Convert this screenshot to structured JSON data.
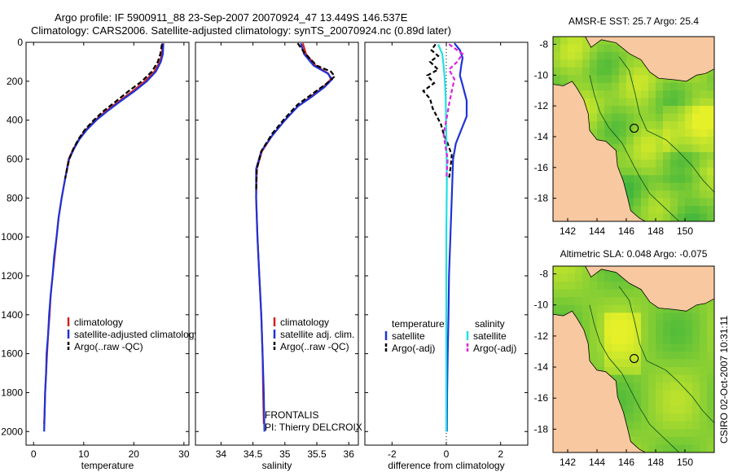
{
  "title": {
    "line1": "Argo profile: IF 5900911_88 23-Sep-2007 20070924_47 13.449S 146.537E",
    "line2": "Climatology: CARS2006. Satellite-adjusted climatology: synTS_20070924.nc (0.89d later)"
  },
  "footer": {
    "credit": "CSIRO 02-Oct-2007 10:31:11",
    "project": "FRONTALIS",
    "pi": "PI: Thierry DELCROIX"
  },
  "colors": {
    "climatology": "#d42020",
    "satellite": "#1f33d8",
    "argo": "#000000",
    "sat_salinity": "#22e0e0",
    "argo_salinity_adj": "#e020e0",
    "land": "#f8c8a0"
  },
  "chart_data": [
    {
      "type": "line",
      "id": "temperature",
      "xlabel": "temperature",
      "ylabel": "",
      "xlim": [
        -1.5,
        31
      ],
      "ylim": [
        2070,
        0
      ],
      "xticks": [
        0,
        10,
        20,
        30
      ],
      "yticks": [
        0,
        200,
        400,
        600,
        800,
        1000,
        1200,
        1400,
        1600,
        1800,
        2000
      ],
      "legend": [
        "climatology",
        "satellite-adjusted climatology",
        "Argo(..raw -QC)"
      ],
      "series": [
        {
          "name": "climatology",
          "color": "#d42020",
          "dash": "",
          "points": [
            [
              25.7,
              5
            ],
            [
              25.6,
              60
            ],
            [
              25.2,
              100
            ],
            [
              24.1,
              150
            ],
            [
              22.2,
              200
            ],
            [
              19.8,
              250
            ],
            [
              17.2,
              300
            ],
            [
              14.6,
              350
            ],
            [
              12.3,
              400
            ],
            [
              10.4,
              450
            ],
            [
              9.0,
              500
            ],
            [
              7.9,
              550
            ],
            [
              7.0,
              600
            ],
            [
              6.3,
              700
            ],
            [
              5.6,
              800
            ],
            [
              5.0,
              900
            ],
            [
              4.6,
              1000
            ],
            [
              4.2,
              1100
            ],
            [
              3.8,
              1200
            ],
            [
              3.4,
              1300
            ],
            [
              3.2,
              1400
            ],
            [
              2.9,
              1500
            ],
            [
              2.7,
              1600
            ],
            [
              2.5,
              1700
            ],
            [
              2.3,
              1800
            ],
            [
              2.2,
              1900
            ],
            [
              2.1,
              1960
            ]
          ]
        },
        {
          "name": "satellite-adjusted climatology",
          "color": "#1f33d8",
          "dash": "",
          "points": [
            [
              25.9,
              5
            ],
            [
              25.8,
              60
            ],
            [
              25.4,
              100
            ],
            [
              24.4,
              150
            ],
            [
              22.6,
              200
            ],
            [
              20.2,
              250
            ],
            [
              17.5,
              300
            ],
            [
              14.9,
              350
            ],
            [
              12.5,
              400
            ],
            [
              10.6,
              450
            ],
            [
              9.1,
              500
            ],
            [
              8.0,
              550
            ],
            [
              7.1,
              600
            ],
            [
              6.3,
              700
            ],
            [
              5.6,
              800
            ],
            [
              5.0,
              900
            ],
            [
              4.6,
              1000
            ],
            [
              4.1,
              1100
            ],
            [
              3.8,
              1200
            ],
            [
              3.4,
              1300
            ],
            [
              3.1,
              1400
            ],
            [
              2.9,
              1500
            ],
            [
              2.6,
              1600
            ],
            [
              2.5,
              1700
            ],
            [
              2.3,
              1800
            ],
            [
              2.2,
              1900
            ],
            [
              2.1,
              2000
            ]
          ]
        },
        {
          "name": "Argo(..raw -QC)",
          "color": "#000000",
          "dash": "6,3",
          "points": [
            [
              25.6,
              10
            ],
            [
              25.3,
              60
            ],
            [
              24.8,
              100
            ],
            [
              23.6,
              150
            ],
            [
              21.6,
              200
            ],
            [
              19.0,
              250
            ],
            [
              16.6,
              300
            ],
            [
              14.1,
              350
            ],
            [
              12.0,
              400
            ],
            [
              10.2,
              450
            ],
            [
              8.9,
              500
            ],
            [
              7.9,
              550
            ],
            [
              7.1,
              600
            ],
            [
              6.3,
              700
            ]
          ]
        }
      ]
    },
    {
      "type": "line",
      "id": "salinity",
      "xlabel": "salinity",
      "ylabel": "",
      "xlim": [
        33.6,
        36.15
      ],
      "ylim": [
        2070,
        0
      ],
      "xticks": [
        34,
        34.5,
        35,
        35.5,
        36
      ],
      "yticks": [
        0,
        200,
        400,
        600,
        800,
        1000,
        1200,
        1400,
        1600,
        1800,
        2000
      ],
      "legend": [
        "climatology",
        "satellite adj. clim.",
        "Argo(..raw -QC)"
      ],
      "series": [
        {
          "name": "climatology",
          "color": "#d42020",
          "dash": "",
          "points": [
            [
              35.28,
              5
            ],
            [
              35.33,
              60
            ],
            [
              35.48,
              120
            ],
            [
              35.68,
              160
            ],
            [
              35.72,
              190
            ],
            [
              35.6,
              230
            ],
            [
              35.4,
              280
            ],
            [
              35.2,
              330
            ],
            [
              35.0,
              400
            ],
            [
              34.8,
              480
            ],
            [
              34.64,
              560
            ],
            [
              34.56,
              650
            ],
            [
              34.55,
              800
            ],
            [
              34.57,
              1000
            ],
            [
              34.6,
              1200
            ],
            [
              34.63,
              1400
            ],
            [
              34.65,
              1600
            ],
            [
              34.66,
              1800
            ],
            [
              34.67,
              1960
            ]
          ]
        },
        {
          "name": "satellite adj. clim.",
          "color": "#1f33d8",
          "dash": "",
          "points": [
            [
              35.25,
              5
            ],
            [
              35.3,
              60
            ],
            [
              35.45,
              120
            ],
            [
              35.67,
              160
            ],
            [
              35.74,
              190
            ],
            [
              35.62,
              230
            ],
            [
              35.42,
              280
            ],
            [
              35.2,
              330
            ],
            [
              35.0,
              400
            ],
            [
              34.8,
              480
            ],
            [
              34.63,
              560
            ],
            [
              34.55,
              650
            ],
            [
              34.55,
              800
            ],
            [
              34.57,
              1000
            ],
            [
              34.6,
              1200
            ],
            [
              34.63,
              1400
            ],
            [
              34.65,
              1600
            ],
            [
              34.67,
              1800
            ],
            [
              34.68,
              2000
            ]
          ]
        },
        {
          "name": "Argo(..raw -QC)",
          "color": "#000000",
          "dash": "6,3",
          "points": [
            [
              35.2,
              5
            ],
            [
              35.32,
              60
            ],
            [
              35.5,
              120
            ],
            [
              35.72,
              150
            ],
            [
              35.78,
              175
            ],
            [
              35.66,
              210
            ],
            [
              35.45,
              260
            ],
            [
              35.2,
              320
            ],
            [
              35.0,
              390
            ],
            [
              34.8,
              470
            ],
            [
              34.63,
              560
            ],
            [
              34.56,
              650
            ],
            [
              34.55,
              760
            ]
          ]
        }
      ]
    },
    {
      "type": "line",
      "id": "difference",
      "xlabel": "difference from climatology",
      "ylabel": "",
      "xlim": [
        -3,
        3
      ],
      "ylim": [
        2070,
        0
      ],
      "xticks": [
        -2,
        0,
        2
      ],
      "yticks": [
        0,
        200,
        400,
        600,
        800,
        1000,
        1200,
        1400,
        1600,
        1800,
        2000
      ],
      "legend_left": {
        "title": "temperature",
        "items": [
          "satellite",
          "Argo(-adj)"
        ]
      },
      "legend_right": {
        "title": "salinity",
        "items": [
          "satellite",
          "Argo(-adj)"
        ]
      },
      "series": [
        {
          "name": "temperature satellite",
          "color": "#1f33d8",
          "dash": "",
          "points": [
            [
              0.3,
              5
            ],
            [
              0.5,
              40
            ],
            [
              0.6,
              80
            ],
            [
              0.55,
              120
            ],
            [
              0.5,
              170
            ],
            [
              0.6,
              220
            ],
            [
              0.75,
              300
            ],
            [
              0.75,
              380
            ],
            [
              0.55,
              450
            ],
            [
              0.35,
              520
            ],
            [
              0.25,
              600
            ],
            [
              0.2,
              800
            ],
            [
              0.15,
              1000
            ],
            [
              0.1,
              1200
            ],
            [
              0.08,
              1400
            ],
            [
              0.05,
              1600
            ],
            [
              0.03,
              1800
            ],
            [
              0.02,
              2000
            ]
          ]
        },
        {
          "name": "temperature Argo(-adj)",
          "color": "#000000",
          "dash": "5,3",
          "points": [
            [
              -0.4,
              10
            ],
            [
              -0.55,
              40
            ],
            [
              -0.3,
              70
            ],
            [
              -0.6,
              100
            ],
            [
              -0.3,
              140
            ],
            [
              -0.7,
              170
            ],
            [
              -0.45,
              210
            ],
            [
              -0.85,
              250
            ],
            [
              -0.6,
              290
            ],
            [
              -0.5,
              340
            ],
            [
              -0.35,
              380
            ],
            [
              -0.2,
              420
            ],
            [
              -0.1,
              470
            ],
            [
              0.05,
              520
            ],
            [
              0.2,
              580
            ],
            [
              0.15,
              650
            ],
            [
              0.1,
              700
            ]
          ]
        },
        {
          "name": "salinity satellite",
          "color": "#22e0e0",
          "dash": "",
          "points": [
            [
              -0.3,
              10
            ],
            [
              -0.15,
              60
            ],
            [
              -0.1,
              120
            ],
            [
              -0.05,
              200
            ],
            [
              -0.02,
              300
            ],
            [
              0.0,
              500
            ],
            [
              0.02,
              700
            ],
            [
              0.0,
              1000
            ],
            [
              0.0,
              1500
            ],
            [
              0.0,
              2000
            ]
          ]
        },
        {
          "name": "salinity Argo(-adj)",
          "color": "#e020e0",
          "dash": "5,3",
          "points": [
            [
              0.1,
              10
            ],
            [
              0.6,
              60
            ],
            [
              0.4,
              100
            ],
            [
              0.1,
              140
            ],
            [
              0.3,
              190
            ],
            [
              0.2,
              250
            ],
            [
              0.1,
              320
            ],
            [
              0.0,
              400
            ],
            [
              -0.1,
              470
            ],
            [
              -0.05,
              520
            ],
            [
              0.05,
              600
            ],
            [
              0.0,
              700
            ]
          ]
        }
      ]
    },
    {
      "type": "heatmap",
      "id": "sst-map",
      "title": "AMSR-E SST: 25.7 Argo: 25.4",
      "xlim": [
        141,
        152
      ],
      "ylim": [
        -19.5,
        -7.5
      ],
      "xticks": [
        142,
        144,
        146,
        148,
        150
      ],
      "yticks": [
        -8,
        -10,
        -12,
        -14,
        -16,
        -18
      ],
      "float_position": {
        "lon": 146.537,
        "lat": -13.449
      }
    },
    {
      "type": "heatmap",
      "id": "sla-map",
      "title": "Altimetric SLA: 0.048 Argo: -0.075",
      "xlim": [
        141,
        152
      ],
      "ylim": [
        -19.5,
        -7.5
      ],
      "xticks": [
        142,
        144,
        146,
        148,
        150
      ],
      "yticks": [
        -8,
        -10,
        -12,
        -14,
        -16,
        -18
      ],
      "float_position": {
        "lon": 146.537,
        "lat": -13.449
      }
    }
  ]
}
